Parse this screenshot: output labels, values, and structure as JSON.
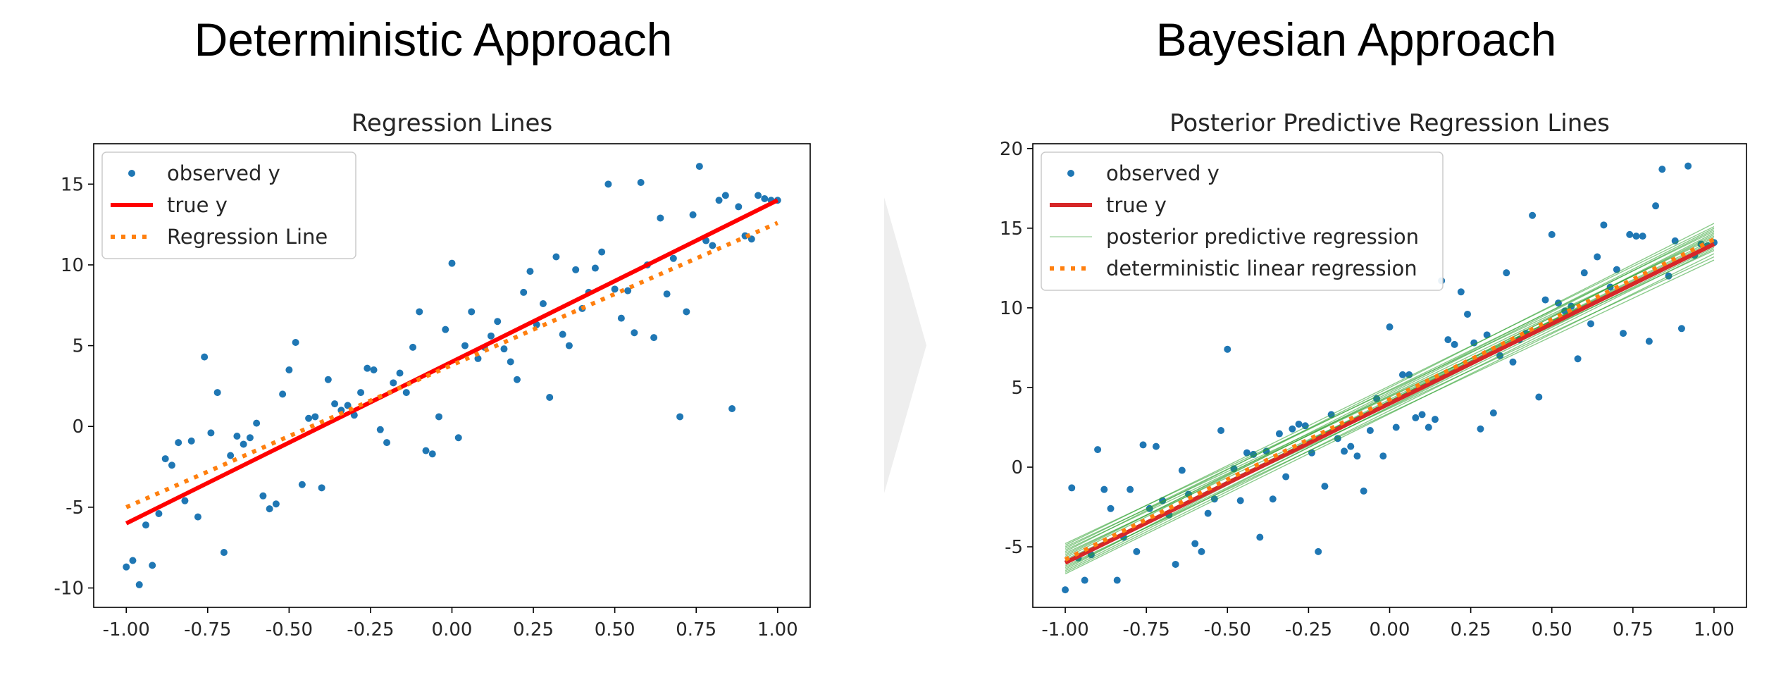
{
  "headings": {
    "left": "Deterministic Approach",
    "right": "Bayesian Approach"
  },
  "colors": {
    "observed": "#1f77b4",
    "true_line": "#ff0000",
    "true_line_bayes": "#d62728",
    "regression": "#ff7f0e",
    "posterior": "#2ca02c"
  },
  "chart_data": [
    {
      "type": "scatter",
      "title": "Regression Lines",
      "xlabel": "",
      "ylabel": "",
      "xlim": [
        -1.1,
        1.1
      ],
      "ylim": [
        -11.2,
        17.5
      ],
      "xticks": [
        "-1.00",
        "-0.75",
        "-0.50",
        "-0.25",
        "0.00",
        "0.25",
        "0.50",
        "0.75",
        "1.00"
      ],
      "xtick_values": [
        -1.0,
        -0.75,
        -0.5,
        -0.25,
        0.0,
        0.25,
        0.5,
        0.75,
        1.0
      ],
      "yticks": [
        "-10",
        "-5",
        "0",
        "5",
        "10",
        "15"
      ],
      "ytick_values": [
        -10,
        -5,
        0,
        5,
        10,
        15
      ],
      "grid": false,
      "legend": {
        "position": "top-left",
        "entries": [
          "observed y",
          "true y",
          "Regression Line"
        ]
      },
      "series": [
        {
          "name": "observed y",
          "kind": "points",
          "x": [
            -1.0,
            -0.98,
            -0.96,
            -0.94,
            -0.92,
            -0.9,
            -0.88,
            -0.86,
            -0.84,
            -0.82,
            -0.8,
            -0.78,
            -0.76,
            -0.74,
            -0.72,
            -0.7,
            -0.68,
            -0.66,
            -0.64,
            -0.62,
            -0.6,
            -0.58,
            -0.56,
            -0.54,
            -0.52,
            -0.5,
            -0.48,
            -0.46,
            -0.44,
            -0.42,
            -0.4,
            -0.38,
            -0.36,
            -0.34,
            -0.32,
            -0.3,
            -0.28,
            -0.26,
            -0.24,
            -0.22,
            -0.2,
            -0.18,
            -0.16,
            -0.14,
            -0.12,
            -0.1,
            -0.08,
            -0.06,
            -0.04,
            -0.02,
            0.0,
            0.02,
            0.04,
            0.06,
            0.08,
            0.1,
            0.12,
            0.14,
            0.16,
            0.18,
            0.2,
            0.22,
            0.24,
            0.26,
            0.28,
            0.3,
            0.32,
            0.34,
            0.36,
            0.38,
            0.4,
            0.42,
            0.44,
            0.46,
            0.48,
            0.5,
            0.52,
            0.54,
            0.56,
            0.58,
            0.6,
            0.62,
            0.64,
            0.66,
            0.68,
            0.7,
            0.72,
            0.74,
            0.76,
            0.78,
            0.8,
            0.82,
            0.84,
            0.86,
            0.88,
            0.9,
            0.92,
            0.94,
            0.96,
            0.98,
            1.0
          ],
          "y": [
            -8.7,
            -8.3,
            -9.8,
            -6.1,
            -8.6,
            -5.4,
            -2.0,
            -2.4,
            -1.0,
            -4.6,
            -0.9,
            -5.6,
            4.3,
            -0.4,
            2.1,
            -7.8,
            -1.8,
            -0.6,
            -1.1,
            -0.7,
            0.2,
            -4.3,
            -5.1,
            -4.8,
            2.0,
            3.5,
            5.2,
            -3.6,
            0.5,
            0.6,
            -3.8,
            2.9,
            1.4,
            1.0,
            1.3,
            0.7,
            2.1,
            3.6,
            3.5,
            -0.2,
            -1.0,
            2.7,
            3.3,
            2.1,
            4.9,
            7.1,
            -1.5,
            -1.7,
            0.6,
            6.0,
            10.1,
            -0.7,
            5.0,
            7.1,
            4.2,
            4.9,
            5.6,
            6.5,
            4.8,
            4.0,
            2.9,
            8.3,
            9.6,
            6.3,
            7.6,
            1.8,
            10.5,
            5.7,
            5.0,
            9.7,
            7.3,
            8.3,
            9.8,
            10.8,
            15.0,
            8.5,
            6.7,
            8.4,
            5.8,
            15.1,
            10.0,
            5.5,
            12.9,
            8.2,
            10.4,
            0.6,
            7.1,
            13.1,
            16.1,
            11.5,
            11.2,
            14.0,
            14.3,
            1.1,
            13.6,
            11.8,
            11.6,
            14.3,
            14.1,
            14.0,
            14.0
          ]
        },
        {
          "name": "true y",
          "kind": "line",
          "x": [
            -1.0,
            1.0
          ],
          "y": [
            -6.0,
            14.0
          ]
        },
        {
          "name": "Regression Line",
          "kind": "dotted-line",
          "x": [
            -1.0,
            1.0
          ],
          "y": [
            -5.0,
            12.6
          ]
        }
      ]
    },
    {
      "type": "scatter",
      "title": "Posterior Predictive Regression Lines",
      "xlabel": "",
      "ylabel": "",
      "xlim": [
        -1.1,
        1.1
      ],
      "ylim": [
        -8.8,
        20.3
      ],
      "xticks": [
        "-1.00",
        "-0.75",
        "-0.50",
        "-0.25",
        "0.00",
        "0.25",
        "0.50",
        "0.75",
        "1.00"
      ],
      "xtick_values": [
        -1.0,
        -0.75,
        -0.5,
        -0.25,
        0.0,
        0.25,
        0.5,
        0.75,
        1.0
      ],
      "yticks": [
        "-5",
        "0",
        "5",
        "10",
        "15",
        "20"
      ],
      "ytick_values": [
        -5,
        0,
        5,
        10,
        15,
        20
      ],
      "grid": false,
      "legend": {
        "position": "top-left",
        "entries": [
          "observed y",
          "true y",
          "posterior predictive regression",
          "deterministic linear regression"
        ]
      },
      "series": [
        {
          "name": "observed y",
          "kind": "points",
          "x": [
            -1.0,
            -0.98,
            -0.96,
            -0.94,
            -0.92,
            -0.9,
            -0.88,
            -0.86,
            -0.84,
            -0.82,
            -0.8,
            -0.78,
            -0.76,
            -0.74,
            -0.72,
            -0.7,
            -0.68,
            -0.66,
            -0.64,
            -0.62,
            -0.6,
            -0.58,
            -0.56,
            -0.54,
            -0.52,
            -0.5,
            -0.48,
            -0.46,
            -0.44,
            -0.42,
            -0.4,
            -0.38,
            -0.36,
            -0.34,
            -0.32,
            -0.3,
            -0.28,
            -0.26,
            -0.24,
            -0.22,
            -0.2,
            -0.18,
            -0.16,
            -0.14,
            -0.12,
            -0.1,
            -0.08,
            -0.06,
            -0.04,
            -0.02,
            0.0,
            0.02,
            0.04,
            0.06,
            0.08,
            0.1,
            0.12,
            0.14,
            0.16,
            0.18,
            0.2,
            0.22,
            0.24,
            0.26,
            0.28,
            0.3,
            0.32,
            0.34,
            0.36,
            0.38,
            0.4,
            0.42,
            0.44,
            0.46,
            0.48,
            0.5,
            0.52,
            0.54,
            0.56,
            0.58,
            0.6,
            0.62,
            0.64,
            0.66,
            0.68,
            0.7,
            0.72,
            0.74,
            0.76,
            0.78,
            0.8,
            0.82,
            0.84,
            0.86,
            0.88,
            0.9,
            0.92,
            0.94,
            0.96,
            0.98,
            1.0
          ],
          "y": [
            -7.7,
            -1.3,
            -5.7,
            -7.1,
            -5.5,
            1.1,
            -1.4,
            -2.6,
            -7.1,
            -4.4,
            -1.4,
            -5.3,
            1.4,
            -2.6,
            1.3,
            -2.1,
            -3.0,
            -6.1,
            -0.2,
            -1.7,
            -4.8,
            -5.3,
            -2.9,
            -2.0,
            2.3,
            7.4,
            -0.1,
            -2.1,
            0.9,
            0.8,
            -4.4,
            1.0,
            -2.0,
            2.1,
            -0.6,
            2.4,
            2.7,
            2.6,
            0.9,
            -5.3,
            -1.2,
            3.3,
            1.8,
            1.0,
            1.3,
            0.7,
            -1.5,
            2.3,
            4.3,
            0.7,
            8.8,
            2.5,
            5.8,
            5.8,
            3.1,
            3.3,
            2.5,
            3.0,
            11.7,
            8.0,
            7.7,
            11.0,
            9.6,
            7.8,
            2.4,
            8.3,
            3.4,
            7.0,
            12.2,
            6.6,
            8.0,
            8.4,
            15.8,
            4.4,
            10.5,
            14.6,
            10.3,
            9.8,
            10.1,
            6.8,
            12.2,
            9.0,
            13.2,
            15.2,
            11.3,
            12.4,
            8.4,
            14.6,
            14.5,
            14.5,
            7.9,
            16.4,
            18.7,
            12.0,
            14.2,
            8.7,
            18.9,
            13.3,
            14.0,
            13.9,
            14.1
          ]
        },
        {
          "name": "true y",
          "kind": "line",
          "x": [
            -1.0,
            1.0
          ],
          "y": [
            -6.0,
            14.0
          ]
        },
        {
          "name": "posterior predictive regression",
          "kind": "line-bundle",
          "lines": [
            {
              "x": [
                -1.0,
                1.0
              ],
              "y": [
                -4.9,
                15.1
              ]
            },
            {
              "x": [
                -1.0,
                1.0
              ],
              "y": [
                -5.1,
                14.8
              ]
            },
            {
              "x": [
                -1.0,
                1.0
              ],
              "y": [
                -5.3,
                15.3
              ]
            },
            {
              "x": [
                -1.0,
                1.0
              ],
              "y": [
                -5.5,
                14.5
              ]
            },
            {
              "x": [
                -1.0,
                1.0
              ],
              "y": [
                -5.7,
                14.9
              ]
            },
            {
              "x": [
                -1.0,
                1.0
              ],
              "y": [
                -5.9,
                14.2
              ]
            },
            {
              "x": [
                -1.0,
                1.0
              ],
              "y": [
                -6.1,
                14.6
              ]
            },
            {
              "x": [
                -1.0,
                1.0
              ],
              "y": [
                -6.3,
                13.8
              ]
            },
            {
              "x": [
                -1.0,
                1.0
              ],
              "y": [
                -6.5,
                14.1
              ]
            },
            {
              "x": [
                -1.0,
                1.0
              ],
              "y": [
                -6.7,
                13.4
              ]
            },
            {
              "x": [
                -1.0,
                1.0
              ],
              "y": [
                -5.0,
                13.9
              ]
            },
            {
              "x": [
                -1.0,
                1.0
              ],
              "y": [
                -5.4,
                13.6
              ]
            },
            {
              "x": [
                -1.0,
                1.0
              ],
              "y": [
                -5.8,
                13.2
              ]
            },
            {
              "x": [
                -1.0,
                1.0
              ],
              "y": [
                -6.2,
                13.0
              ]
            },
            {
              "x": [
                -1.0,
                1.0
              ],
              "y": [
                -4.8,
                14.4
              ]
            },
            {
              "x": [
                -1.0,
                1.0
              ],
              "y": [
                -5.6,
                15.0
              ]
            },
            {
              "x": [
                -1.0,
                1.0
              ],
              "y": [
                -6.0,
                14.3
              ]
            },
            {
              "x": [
                -1.0,
                1.0
              ],
              "y": [
                -6.4,
                14.7
              ]
            },
            {
              "x": [
                -1.0,
                1.0
              ],
              "y": [
                -5.2,
                14.0
              ]
            },
            {
              "x": [
                -1.0,
                1.0
              ],
              "y": [
                -6.6,
                13.7
              ]
            }
          ]
        },
        {
          "name": "deterministic linear regression",
          "kind": "dotted-line",
          "x": [
            -1.0,
            1.0
          ],
          "y": [
            -5.8,
            14.3
          ]
        }
      ]
    }
  ]
}
